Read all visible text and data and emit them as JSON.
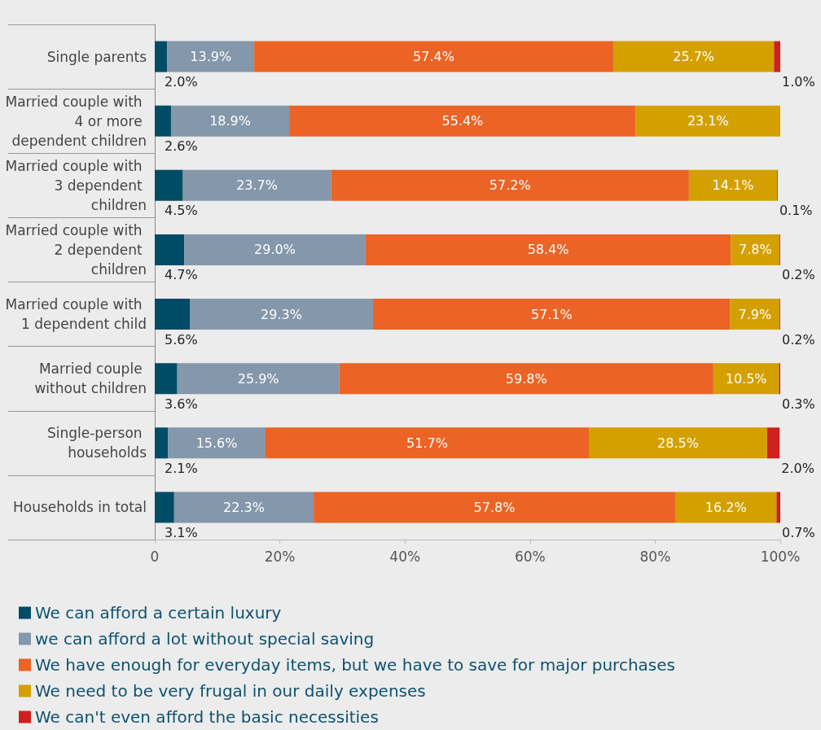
{
  "chart_data": {
    "type": "bar",
    "orientation": "horizontal",
    "stacked": true,
    "categories": [
      "Single parents",
      "Married couple with 4 or more dependent children",
      "Married couple with 3 dependent children",
      "Married couple with 2 dependent children",
      "Married couple with 1 dependent child",
      "Married couple without children",
      "Single-person households",
      "Households in total"
    ],
    "series": [
      {
        "name": "We can afford a certain luxury",
        "color": "#004b66",
        "values": [
          2.0,
          2.6,
          4.5,
          4.7,
          5.6,
          3.6,
          2.1,
          3.1
        ],
        "value_labels": [
          "2.0%",
          "2.6%",
          "4.5%",
          "4.7%",
          "5.6%",
          "3.6%",
          "2.1%",
          "3.1%"
        ]
      },
      {
        "name": "we can afford a lot without special saving",
        "color": "#8497ab",
        "values": [
          13.9,
          18.9,
          23.7,
          29.0,
          29.3,
          25.9,
          15.6,
          22.3
        ],
        "value_labels": [
          "13.9%",
          "18.9%",
          "23.7%",
          "29.0%",
          "29.3%",
          "25.9%",
          "15.6%",
          "22.3%"
        ]
      },
      {
        "name": "We have enough for everyday items, but we have to save for major purchases",
        "color": "#eb6325",
        "values": [
          57.4,
          55.4,
          57.2,
          58.4,
          57.1,
          59.8,
          51.7,
          57.8
        ],
        "value_labels": [
          "57.4%",
          "55.4%",
          "57.2%",
          "58.4%",
          "57.1%",
          "59.8%",
          "51.7%",
          "57.8%"
        ]
      },
      {
        "name": "We need to be very frugal in our daily expenses",
        "color": "#d4a000",
        "values": [
          25.7,
          23.1,
          14.1,
          7.8,
          7.9,
          10.5,
          28.5,
          16.2
        ],
        "value_labels": [
          "25.7%",
          "23.1%",
          "14.1%",
          "7.8%",
          "7.9%",
          "10.5%",
          "28.5%",
          "16.2%"
        ]
      },
      {
        "name": "We can't even afford the basic necessities",
        "color": "#d01f1f",
        "values": [
          1.0,
          null,
          0.1,
          0.2,
          0.2,
          0.3,
          2.0,
          0.7
        ],
        "value_labels": [
          "1.0%",
          null,
          "0.1%",
          "0.2%",
          "0.2%",
          "0.3%",
          "2.0%",
          "0.7%"
        ]
      }
    ],
    "xlim": [
      0,
      100
    ],
    "xticks": [
      {
        "value": 0,
        "label": "0"
      },
      {
        "value": 20,
        "label": "20%"
      },
      {
        "value": 40,
        "label": "40%"
      },
      {
        "value": 60,
        "label": "60%"
      },
      {
        "value": 80,
        "label": "80%"
      },
      {
        "value": 100,
        "label": "100%"
      }
    ],
    "grid": false,
    "legend": "bottom"
  }
}
